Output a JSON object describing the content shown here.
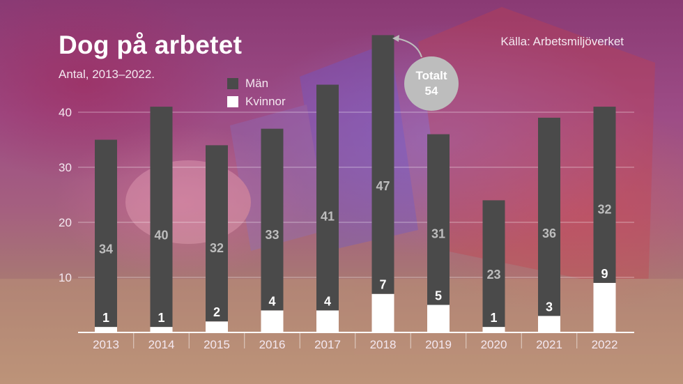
{
  "title": "Dog på arbetet",
  "subtitle": "Antal, 2013–2022.",
  "source": "Källa: Arbetsmiljöverket",
  "legend": [
    {
      "label": "Män",
      "color": "#4a4a4a"
    },
    {
      "label": "Kvinnor",
      "color": "#ffffff"
    }
  ],
  "callout": {
    "line1": "Totalt",
    "line2": "54"
  },
  "colors": {
    "men": "#4a4a4a",
    "women": "#ffffff",
    "men_label": "#bdbdbd",
    "women_label": "#ffffff",
    "axis_text": "#f4e8f0",
    "callout_bg": "#bdbdbd"
  },
  "chart_data": {
    "type": "bar",
    "stacked": true,
    "categories": [
      "2013",
      "2014",
      "2015",
      "2016",
      "2017",
      "2018",
      "2019",
      "2020",
      "2021",
      "2022"
    ],
    "series": [
      {
        "name": "Kvinnor",
        "values": [
          1,
          1,
          2,
          4,
          4,
          7,
          5,
          1,
          3,
          9
        ]
      },
      {
        "name": "Män",
        "values": [
          34,
          40,
          32,
          33,
          41,
          47,
          31,
          23,
          36,
          32
        ]
      }
    ],
    "yticks": [
      10,
      20,
      30,
      40
    ],
    "ylim": [
      0,
      50
    ],
    "grid": true,
    "xlabel": "",
    "ylabel": ""
  }
}
